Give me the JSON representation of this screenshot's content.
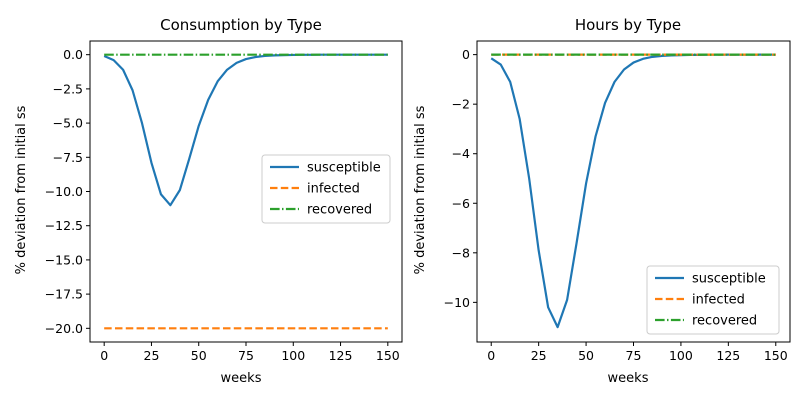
{
  "chart_data": [
    {
      "type": "line",
      "title": "Consumption by Type",
      "xlabel": "weeks",
      "ylabel": "% deviation from initial ss",
      "xlim": [
        -7.5,
        157.5
      ],
      "ylim": [
        -21,
        1
      ],
      "xticks": [
        0,
        25,
        50,
        75,
        100,
        125,
        150
      ],
      "xtick_labels": [
        "0",
        "25",
        "50",
        "75",
        "100",
        "125",
        "150"
      ],
      "yticks": [
        0,
        -2.5,
        -5,
        -7.5,
        -10,
        -12.5,
        -15,
        -17.5,
        -20
      ],
      "ytick_labels": [
        "0.0",
        "−2.5",
        "−5.0",
        "−7.5",
        "−10.0",
        "−12.5",
        "−15.0",
        "−17.5",
        "−20.0"
      ],
      "legend": "center-right",
      "grid": false,
      "x": [
        0,
        5,
        10,
        15,
        20,
        25,
        30,
        35,
        40,
        45,
        50,
        55,
        60,
        65,
        70,
        75,
        80,
        85,
        90,
        95,
        100,
        105,
        110,
        115,
        120,
        125,
        130,
        135,
        140,
        145,
        150
      ],
      "series": [
        {
          "name": "susceptible",
          "color": "#1f77b4",
          "style": "solid",
          "values": [
            -0.1,
            -0.4,
            -1.1,
            -2.6,
            -5.0,
            -7.9,
            -10.2,
            -11.0,
            -9.9,
            -7.6,
            -5.2,
            -3.3,
            -1.95,
            -1.1,
            -0.6,
            -0.32,
            -0.17,
            -0.09,
            -0.05,
            -0.03,
            -0.02,
            -0.01,
            -0.01,
            0,
            0,
            0,
            0,
            0,
            0,
            0,
            0
          ]
        },
        {
          "name": "infected",
          "color": "#ff7f0e",
          "style": "dashed",
          "values": [
            -20,
            -20,
            -20,
            -20,
            -20,
            -20,
            -20,
            -20,
            -20,
            -20,
            -20,
            -20,
            -20,
            -20,
            -20,
            -20,
            -20,
            -20,
            -20,
            -20,
            -20,
            -20,
            -20,
            -20,
            -20,
            -20,
            -20,
            -20,
            -20,
            -20,
            -20
          ]
        },
        {
          "name": "recovered",
          "color": "#2ca02c",
          "style": "dashdot",
          "values": [
            0,
            0,
            0,
            0,
            0,
            0,
            0,
            0,
            0,
            0,
            0,
            0,
            0,
            0,
            0,
            0,
            0,
            0,
            0,
            0,
            0,
            0,
            0,
            0,
            0,
            0,
            0,
            0,
            0,
            0,
            0
          ]
        }
      ]
    },
    {
      "type": "line",
      "title": "Hours by Type",
      "xlabel": "weeks",
      "ylabel": "% deviation from initial ss",
      "xlim": [
        -7.5,
        157.5
      ],
      "ylim": [
        -11.6,
        0.55
      ],
      "xticks": [
        0,
        25,
        50,
        75,
        100,
        125,
        150
      ],
      "xtick_labels": [
        "0",
        "25",
        "50",
        "75",
        "100",
        "125",
        "150"
      ],
      "yticks": [
        0,
        -2,
        -4,
        -6,
        -8,
        -10
      ],
      "ytick_labels": [
        "0",
        "−2",
        "−4",
        "−6",
        "−8",
        "−10"
      ],
      "legend": "lower-right",
      "grid": false,
      "x": [
        0,
        5,
        10,
        15,
        20,
        25,
        30,
        35,
        40,
        45,
        50,
        55,
        60,
        65,
        70,
        75,
        80,
        85,
        90,
        95,
        100,
        105,
        110,
        115,
        120,
        125,
        130,
        135,
        140,
        145,
        150
      ],
      "series": [
        {
          "name": "susceptible",
          "color": "#1f77b4",
          "style": "solid",
          "values": [
            -0.15,
            -0.4,
            -1.1,
            -2.6,
            -5.0,
            -7.9,
            -10.2,
            -11.0,
            -9.9,
            -7.6,
            -5.2,
            -3.3,
            -1.95,
            -1.1,
            -0.6,
            -0.32,
            -0.17,
            -0.09,
            -0.05,
            -0.03,
            -0.02,
            -0.01,
            -0.01,
            0,
            0,
            0,
            0,
            0,
            0,
            0,
            0
          ]
        },
        {
          "name": "infected",
          "color": "#ff7f0e",
          "style": "dashed",
          "values": [
            0,
            0,
            0,
            0,
            0,
            0,
            0,
            0,
            0,
            0,
            0,
            0,
            0,
            0,
            0,
            0,
            0,
            0,
            0,
            0,
            0,
            0,
            0,
            0,
            0,
            0,
            0,
            0,
            0,
            0,
            0
          ]
        },
        {
          "name": "recovered",
          "color": "#2ca02c",
          "style": "dashdot",
          "values": [
            0,
            0,
            0,
            0,
            0,
            0,
            0,
            0,
            0,
            0,
            0,
            0,
            0,
            0,
            0,
            0,
            0,
            0,
            0,
            0,
            0,
            0,
            0,
            0,
            0,
            0,
            0,
            0,
            0,
            0,
            0
          ]
        }
      ]
    }
  ]
}
